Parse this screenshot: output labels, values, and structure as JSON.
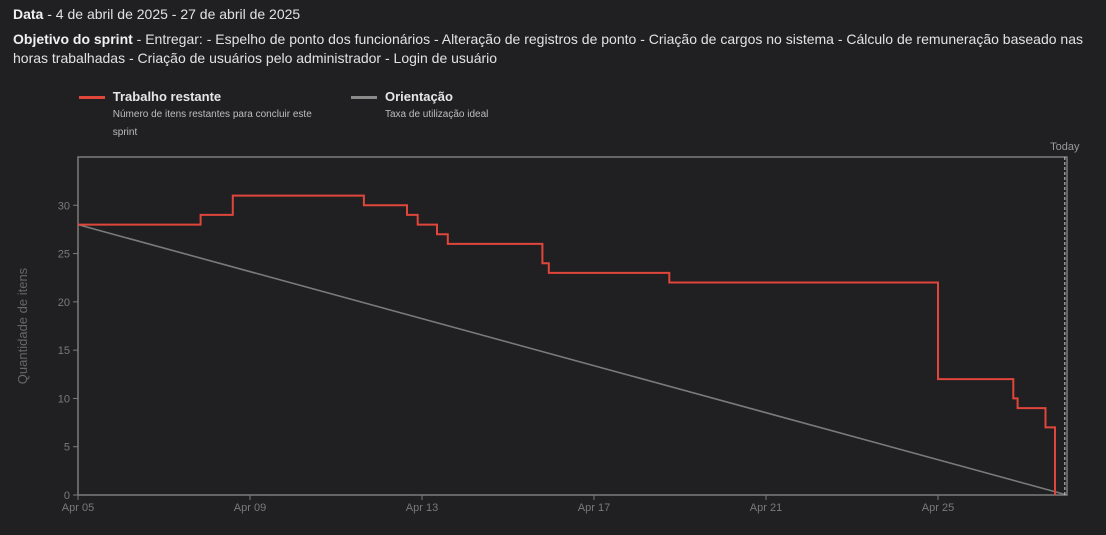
{
  "header": {
    "date_label": "Data",
    "date_value": " - 4 de abril de 2025 - 27 de abril de 2025",
    "goal_label": "Objetivo do sprint",
    "goal_value": " - Entregar: - Espelho de ponto dos funcionários - Alteração de registros de ponto - Criação de cargos no sistema - Cálculo de remuneração baseado nas horas trabalhadas - Criação de usuários pelo administrador - Login de usuário"
  },
  "legend": [
    {
      "title": "Trabalho restante",
      "desc": "Número de itens restantes para concluir este sprint",
      "color": "#e0463b"
    },
    {
      "title": "Orientação",
      "desc": "Taxa de utilização ideal",
      "color": "#8a8a8a"
    }
  ],
  "chart_data": {
    "type": "line",
    "ylabel": "Quantidade de itens",
    "xlabel": "",
    "ylim": [
      0,
      35
    ],
    "xlim_days": [
      0,
      23
    ],
    "x_ticks": [
      {
        "label": "Apr 05",
        "day": 0
      },
      {
        "label": "Apr 09",
        "day": 4
      },
      {
        "label": "Apr 13",
        "day": 8
      },
      {
        "label": "Apr 17",
        "day": 12
      },
      {
        "label": "Apr 21",
        "day": 16
      },
      {
        "label": "Apr 25",
        "day": 20
      }
    ],
    "y_ticks": [
      0,
      5,
      10,
      15,
      20,
      25,
      30
    ],
    "today_label": "Today",
    "today_day": 22.95,
    "series": [
      {
        "name": "Trabalho restante",
        "color": "#e0463b",
        "step": true,
        "points": [
          [
            0,
            28
          ],
          [
            2.85,
            28
          ],
          [
            2.85,
            29
          ],
          [
            3.6,
            29
          ],
          [
            3.6,
            31
          ],
          [
            6.65,
            31
          ],
          [
            6.65,
            30
          ],
          [
            7.65,
            30
          ],
          [
            7.65,
            29
          ],
          [
            7.9,
            29
          ],
          [
            7.9,
            28
          ],
          [
            8.35,
            28
          ],
          [
            8.35,
            27
          ],
          [
            8.6,
            27
          ],
          [
            8.6,
            26
          ],
          [
            10.8,
            26
          ],
          [
            10.8,
            24
          ],
          [
            10.95,
            24
          ],
          [
            10.95,
            23
          ],
          [
            13.75,
            23
          ],
          [
            13.75,
            22
          ],
          [
            20.0,
            22
          ],
          [
            20.0,
            12
          ],
          [
            21.75,
            12
          ],
          [
            21.75,
            10
          ],
          [
            21.85,
            10
          ],
          [
            21.85,
            9
          ],
          [
            22.5,
            9
          ],
          [
            22.5,
            7
          ],
          [
            22.72,
            7
          ],
          [
            22.72,
            0
          ]
        ]
      },
      {
        "name": "Orientação",
        "color": "#7a7a7a",
        "step": false,
        "points": [
          [
            0,
            28
          ],
          [
            23,
            0
          ]
        ]
      }
    ]
  }
}
